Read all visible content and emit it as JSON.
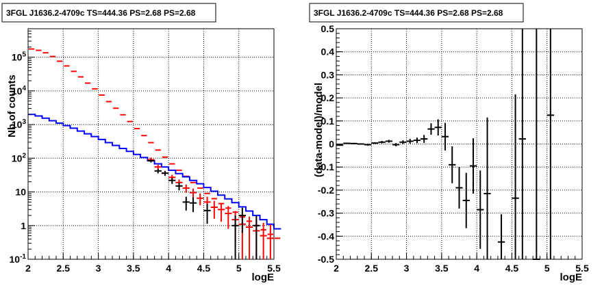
{
  "chart_data": [
    {
      "type": "line",
      "title": "3FGL J1636.2-4709c TS=444.36 PS=2.68 PS=2.68",
      "xlabel": "logE",
      "ylabel": "Nb of counts",
      "xlim": [
        2,
        5.5
      ],
      "ylim": [
        0.1,
        700000
      ],
      "yscale": "log",
      "grid": true,
      "xticks": [
        "2",
        "2.5",
        "3",
        "3.5",
        "4",
        "4.5",
        "5",
        "5.5"
      ],
      "yticks": [
        "10^-1",
        "1",
        "10",
        "10^2",
        "10^3",
        "10^4",
        "10^5"
      ],
      "bins": {
        "start": 2.0,
        "width": 0.1
      },
      "series": [
        {
          "color": "#ff0000",
          "style": "histogram",
          "values": [
            175000,
            160000,
            135000,
            105000,
            76000,
            55000,
            38000,
            26000,
            17000,
            11500,
            7500,
            4800,
            3050,
            1950,
            1230,
            760,
            470,
            290,
            175,
            108,
            68,
            44,
            29,
            19,
            13,
            9,
            6.3,
            4.5,
            3.3,
            2.5,
            1.8,
            1.35,
            1.0,
            0.75,
            0.55,
            0.42
          ]
        },
        {
          "color": "#0000ff",
          "style": "histogram",
          "values": [
            2000,
            1800,
            1550,
            1300,
            1100,
            930,
            780,
            640,
            530,
            440,
            360,
            290,
            240,
            195,
            160,
            130,
            105,
            85,
            68,
            55,
            44,
            35,
            28,
            22,
            17.5,
            13.5,
            10.5,
            8,
            6.2,
            4.8,
            3.6,
            2.7,
            2.0,
            1.5,
            1.1,
            0.8
          ]
        },
        {
          "color": "#ff0000",
          "style": "errorbar",
          "x": [
            3.75,
            3.85,
            3.95,
            4.05,
            4.15,
            4.25,
            4.35,
            4.45,
            4.55,
            4.65,
            4.75,
            4.85,
            4.95,
            5.05,
            5.15,
            5.25,
            5.35,
            5.45
          ],
          "y": [
            90,
            55,
            36,
            27,
            19,
            13,
            9.5,
            6.5,
            5,
            3.5,
            3,
            2.3,
            1.5,
            1.1,
            0.9,
            0.7,
            0.5,
            0.42
          ],
          "yerr": [
            15,
            9,
            6,
            5.2,
            4.4,
            3.6,
            3.1,
            2.5,
            2.2,
            1.9,
            1.7,
            1.5,
            1.2,
            1.05,
            0.95,
            0.84,
            0.71,
            0.65
          ]
        },
        {
          "color": "#000000",
          "style": "errorbar",
          "x": [
            3.75,
            3.85,
            3.95,
            4.05,
            4.15,
            4.25,
            4.35,
            4.55,
            4.95,
            5.05,
            5.25
          ],
          "y": [
            84,
            42,
            36,
            22,
            15,
            5,
            4.7,
            2.8,
            1,
            2,
            1
          ],
          "yerr": [
            9,
            6.5,
            6,
            4.7,
            3.9,
            2.2,
            2.17,
            1.67,
            1,
            1.4,
            1
          ]
        }
      ]
    },
    {
      "type": "scatter",
      "title": "3FGL J1636.2-4709c TS=444.36 PS=2.68 PS=2.68",
      "xlabel": "logE",
      "ylabel": "(data-model)/model",
      "xlim": [
        2,
        5.5
      ],
      "ylim": [
        -0.5,
        0.5
      ],
      "grid": true,
      "xticks": [
        "2",
        "2.5",
        "3",
        "3.5",
        "4",
        "4.5",
        "5",
        "5.5"
      ],
      "yticks": [
        "-0.5",
        "-0.4",
        "-0.3",
        "-0.2",
        "-0.1",
        "0",
        "0.1",
        "0.2",
        "0.3",
        "0.4",
        "0.5"
      ],
      "series": [
        {
          "color": "#000000",
          "style": "errorbar",
          "x": [
            2.05,
            2.15,
            2.25,
            2.35,
            2.45,
            2.55,
            2.65,
            2.75,
            2.85,
            2.95,
            3.05,
            3.15,
            3.25,
            3.35,
            3.45,
            3.55,
            3.65,
            3.75,
            3.85,
            3.95,
            4.05,
            4.15,
            4.35,
            4.55,
            4.65,
            4.85,
            5.05
          ],
          "y": [
            -0.005,
            0.003,
            0.002,
            0.0,
            -0.003,
            0.004,
            0.008,
            0.012,
            -0.003,
            0.008,
            0.012,
            0.016,
            0.022,
            0.065,
            0.072,
            0.032,
            -0.09,
            -0.19,
            -0.245,
            -0.095,
            -0.285,
            -0.215,
            -0.425,
            -0.235,
            0.022,
            -0.5,
            0.125
          ],
          "yerr": [
            0.003,
            0.003,
            0.003,
            0.003,
            0.004,
            0.004,
            0.005,
            0.006,
            0.007,
            0.008,
            0.01,
            0.012,
            0.017,
            0.025,
            0.035,
            0.06,
            0.08,
            0.09,
            0.12,
            0.12,
            0.17,
            0.33,
            0.12,
            0.45,
            0.66,
            1.5,
            1.25
          ]
        }
      ]
    }
  ]
}
